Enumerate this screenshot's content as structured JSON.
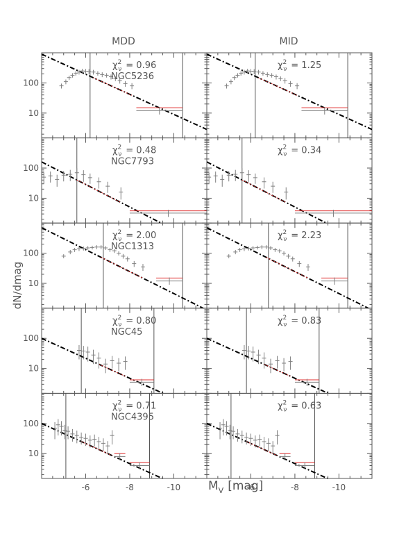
{
  "figure": {
    "column_titles": [
      "MDD",
      "MID"
    ],
    "ylabel": "dN/dmag",
    "xlabel_main": "M",
    "xlabel_sub": "V",
    "xlabel_unit": "[mag]",
    "chi_label_main": "χ",
    "chi_label_sup": "2",
    "chi_label_sub": "ν",
    "x_ticks": [
      -6,
      -8,
      -10
    ],
    "y_ticks": [
      10,
      100
    ],
    "colors": {
      "axes": "#555555",
      "data": "#7f7f7f",
      "fit": "#000000",
      "completeness_bin": "#e03030"
    }
  },
  "chart_data": [
    {
      "type": "scatter",
      "galaxy": "NGC5236",
      "column": "MDD",
      "chi2_nu": "0.96",
      "xlim": [
        -4.0,
        -11.5
      ],
      "ylim": [
        1.5,
        1000
      ],
      "fit": {
        "x0": -4.0,
        "y0": 900,
        "slope": -0.333
      },
      "limit_lines": [
        -6.2,
        -10.4
      ],
      "points": [
        {
          "x": -4.9,
          "y": 80,
          "err": 15
        },
        {
          "x": -5.1,
          "y": 110,
          "err": 20
        },
        {
          "x": -5.25,
          "y": 150,
          "err": 25
        },
        {
          "x": -5.4,
          "y": 180,
          "err": 30
        },
        {
          "x": -5.55,
          "y": 210,
          "err": 35
        },
        {
          "x": -5.7,
          "y": 230,
          "err": 40
        },
        {
          "x": -5.85,
          "y": 250,
          "err": 45
        },
        {
          "x": -6.0,
          "y": 245,
          "err": 45
        },
        {
          "x": -6.15,
          "y": 240,
          "err": 45
        },
        {
          "x": -6.35,
          "y": 230,
          "err": 40
        },
        {
          "x": -6.55,
          "y": 210,
          "err": 35
        },
        {
          "x": -6.75,
          "y": 190,
          "err": 35
        },
        {
          "x": -6.95,
          "y": 180,
          "err": 30
        },
        {
          "x": -7.15,
          "y": 160,
          "err": 30
        },
        {
          "x": -7.35,
          "y": 140,
          "err": 25
        },
        {
          "x": -7.55,
          "y": 120,
          "err": 25
        },
        {
          "x": -7.8,
          "y": 95,
          "err": 20
        },
        {
          "x": -8.1,
          "y": 80,
          "err": 18
        }
      ],
      "wide_bins": [
        {
          "x1": -8.3,
          "x2": -10.4,
          "y_data": 12,
          "y_model": 15
        }
      ]
    },
    {
      "type": "scatter",
      "galaxy": "",
      "column": "MID",
      "chi2_nu": "1.25",
      "xlim": [
        -4.0,
        -11.5
      ],
      "ylim": [
        1.5,
        1000
      ],
      "fit": {
        "x0": -4.0,
        "y0": 900,
        "slope": -0.333
      },
      "limit_lines": [
        -6.2,
        -10.4
      ],
      "points": [
        {
          "x": -4.9,
          "y": 80,
          "err": 15
        },
        {
          "x": -5.1,
          "y": 110,
          "err": 20
        },
        {
          "x": -5.25,
          "y": 150,
          "err": 25
        },
        {
          "x": -5.4,
          "y": 180,
          "err": 30
        },
        {
          "x": -5.55,
          "y": 210,
          "err": 35
        },
        {
          "x": -5.7,
          "y": 230,
          "err": 40
        },
        {
          "x": -5.85,
          "y": 250,
          "err": 45
        },
        {
          "x": -6.0,
          "y": 245,
          "err": 45
        },
        {
          "x": -6.15,
          "y": 240,
          "err": 45
        },
        {
          "x": -6.35,
          "y": 230,
          "err": 40
        },
        {
          "x": -6.55,
          "y": 210,
          "err": 35
        },
        {
          "x": -6.75,
          "y": 190,
          "err": 35
        },
        {
          "x": -6.95,
          "y": 180,
          "err": 30
        },
        {
          "x": -7.15,
          "y": 160,
          "err": 30
        },
        {
          "x": -7.35,
          "y": 140,
          "err": 25
        },
        {
          "x": -7.55,
          "y": 120,
          "err": 25
        },
        {
          "x": -7.8,
          "y": 95,
          "err": 20
        },
        {
          "x": -8.1,
          "y": 80,
          "err": 18
        }
      ],
      "wide_bins": [
        {
          "x1": -8.3,
          "x2": -10.4,
          "y_data": 12,
          "y_model": 15
        }
      ]
    },
    {
      "type": "scatter",
      "galaxy": "NGC7793",
      "column": "MDD",
      "chi2_nu": "0.48",
      "xlim": [
        -4.0,
        -11.5
      ],
      "ylim": [
        1.5,
        1000
      ],
      "fit": {
        "x0": -4.0,
        "y0": 160,
        "slope": -0.374
      },
      "limit_lines": [
        -5.6
      ],
      "points": [
        {
          "x": -4.1,
          "y": 50,
          "err": 20
        },
        {
          "x": -4.4,
          "y": 55,
          "err": 22
        },
        {
          "x": -4.7,
          "y": 42,
          "err": 18
        },
        {
          "x": -5.0,
          "y": 58,
          "err": 22
        },
        {
          "x": -5.3,
          "y": 62,
          "err": 25
        },
        {
          "x": -5.6,
          "y": 70,
          "err": 28
        },
        {
          "x": -5.9,
          "y": 60,
          "err": 25
        },
        {
          "x": -6.2,
          "y": 48,
          "err": 18
        },
        {
          "x": -6.6,
          "y": 35,
          "err": 14
        },
        {
          "x": -7.0,
          "y": 25,
          "err": 10
        },
        {
          "x": -7.6,
          "y": 16,
          "err": 7
        }
      ],
      "wide_bins": [
        {
          "x1": -8.0,
          "x2": -11.5,
          "y_data": 3.2,
          "y_model": 3.8
        }
      ]
    },
    {
      "type": "scatter",
      "galaxy": "",
      "column": "MID",
      "chi2_nu": "0.34",
      "xlim": [
        -4.0,
        -11.5
      ],
      "ylim": [
        1.5,
        1000
      ],
      "fit": {
        "x0": -4.0,
        "y0": 160,
        "slope": -0.374
      },
      "limit_lines": [
        -5.6
      ],
      "points": [
        {
          "x": -4.1,
          "y": 50,
          "err": 20
        },
        {
          "x": -4.4,
          "y": 55,
          "err": 22
        },
        {
          "x": -4.7,
          "y": 42,
          "err": 18
        },
        {
          "x": -5.0,
          "y": 58,
          "err": 22
        },
        {
          "x": -5.3,
          "y": 62,
          "err": 25
        },
        {
          "x": -5.6,
          "y": 70,
          "err": 28
        },
        {
          "x": -5.9,
          "y": 60,
          "err": 25
        },
        {
          "x": -6.2,
          "y": 48,
          "err": 18
        },
        {
          "x": -6.6,
          "y": 35,
          "err": 14
        },
        {
          "x": -7.0,
          "y": 25,
          "err": 10
        },
        {
          "x": -7.6,
          "y": 16,
          "err": 7
        }
      ],
      "wide_bins": [
        {
          "x1": -8.0,
          "x2": -11.5,
          "y_data": 3.2,
          "y_model": 3.8
        }
      ]
    },
    {
      "type": "scatter",
      "galaxy": "NGC1313",
      "column": "MDD",
      "chi2_nu": "2.00",
      "xlim": [
        -4.0,
        -11.5
      ],
      "ylim": [
        1.5,
        1000
      ],
      "fit": {
        "x0": -4.0,
        "y0": 700,
        "slope": -0.364
      },
      "limit_lines": [
        -6.8,
        -10.4
      ],
      "points": [
        {
          "x": -5.0,
          "y": 80,
          "err": 12
        },
        {
          "x": -5.3,
          "y": 110,
          "err": 18
        },
        {
          "x": -5.5,
          "y": 130,
          "err": 20
        },
        {
          "x": -5.7,
          "y": 140,
          "err": 22
        },
        {
          "x": -5.9,
          "y": 145,
          "err": 22
        },
        {
          "x": -6.1,
          "y": 150,
          "err": 22
        },
        {
          "x": -6.3,
          "y": 155,
          "err": 22
        },
        {
          "x": -6.5,
          "y": 160,
          "err": 24
        },
        {
          "x": -6.7,
          "y": 160,
          "err": 24
        },
        {
          "x": -6.9,
          "y": 150,
          "err": 22
        },
        {
          "x": -7.1,
          "y": 130,
          "err": 20
        },
        {
          "x": -7.3,
          "y": 120,
          "err": 18
        },
        {
          "x": -7.5,
          "y": 100,
          "err": 16
        },
        {
          "x": -7.7,
          "y": 80,
          "err": 14
        },
        {
          "x": -7.9,
          "y": 65,
          "err": 12
        },
        {
          "x": -8.2,
          "y": 45,
          "err": 10
        },
        {
          "x": -8.6,
          "y": 35,
          "err": 9
        }
      ],
      "wide_bins": [
        {
          "x1": -9.2,
          "x2": -10.4,
          "y_data": 12,
          "y_model": 15
        }
      ]
    },
    {
      "type": "scatter",
      "galaxy": "",
      "column": "MID",
      "chi2_nu": "2.23",
      "xlim": [
        -4.0,
        -11.5
      ],
      "ylim": [
        1.5,
        1000
      ],
      "fit": {
        "x0": -4.0,
        "y0": 700,
        "slope": -0.364
      },
      "limit_lines": [
        -6.8,
        -10.4
      ],
      "points": [
        {
          "x": -5.0,
          "y": 80,
          "err": 12
        },
        {
          "x": -5.3,
          "y": 110,
          "err": 18
        },
        {
          "x": -5.5,
          "y": 130,
          "err": 20
        },
        {
          "x": -5.7,
          "y": 140,
          "err": 22
        },
        {
          "x": -5.9,
          "y": 145,
          "err": 22
        },
        {
          "x": -6.1,
          "y": 150,
          "err": 22
        },
        {
          "x": -6.3,
          "y": 155,
          "err": 22
        },
        {
          "x": -6.5,
          "y": 160,
          "err": 24
        },
        {
          "x": -6.7,
          "y": 160,
          "err": 24
        },
        {
          "x": -6.9,
          "y": 150,
          "err": 22
        },
        {
          "x": -7.1,
          "y": 130,
          "err": 20
        },
        {
          "x": -7.3,
          "y": 120,
          "err": 18
        },
        {
          "x": -7.5,
          "y": 100,
          "err": 16
        },
        {
          "x": -7.7,
          "y": 80,
          "err": 14
        },
        {
          "x": -7.9,
          "y": 65,
          "err": 12
        },
        {
          "x": -8.2,
          "y": 45,
          "err": 10
        },
        {
          "x": -8.6,
          "y": 35,
          "err": 9
        }
      ],
      "wide_bins": [
        {
          "x1": -9.2,
          "x2": -10.4,
          "y_data": 12,
          "y_model": 15
        }
      ]
    },
    {
      "type": "scatter",
      "galaxy": "NGC45",
      "column": "MDD",
      "chi2_nu": "0.80",
      "xlim": [
        -4.0,
        -11.5
      ],
      "ylim": [
        1.5,
        1000
      ],
      "fit": {
        "x0": -4.0,
        "y0": 100,
        "slope": -0.331
      },
      "limit_lines": [
        -5.8,
        -9.1
      ],
      "points": [
        {
          "x": -5.7,
          "y": 40,
          "err": 20
        },
        {
          "x": -5.9,
          "y": 38,
          "err": 18
        },
        {
          "x": -6.1,
          "y": 35,
          "err": 18
        },
        {
          "x": -6.35,
          "y": 28,
          "err": 14
        },
        {
          "x": -6.6,
          "y": 22,
          "err": 12
        },
        {
          "x": -6.9,
          "y": 14,
          "err": 7
        },
        {
          "x": -7.2,
          "y": 18,
          "err": 8
        },
        {
          "x": -7.5,
          "y": 15,
          "err": 7
        },
        {
          "x": -7.8,
          "y": 17,
          "err": 8
        }
      ],
      "wide_bins": [
        {
          "x1": -8.0,
          "x2": -9.1,
          "y_data": 3.5,
          "y_model": 4.2
        }
      ]
    },
    {
      "type": "scatter",
      "galaxy": "",
      "column": "MID",
      "chi2_nu": "0.83",
      "xlim": [
        -4.0,
        -11.5
      ],
      "ylim": [
        1.5,
        1000
      ],
      "fit": {
        "x0": -4.0,
        "y0": 100,
        "slope": -0.331
      },
      "limit_lines": [
        -5.8,
        -9.1
      ],
      "points": [
        {
          "x": -5.7,
          "y": 40,
          "err": 20
        },
        {
          "x": -5.9,
          "y": 38,
          "err": 18
        },
        {
          "x": -6.1,
          "y": 35,
          "err": 18
        },
        {
          "x": -6.35,
          "y": 28,
          "err": 14
        },
        {
          "x": -6.6,
          "y": 22,
          "err": 12
        },
        {
          "x": -6.9,
          "y": 14,
          "err": 7
        },
        {
          "x": -7.2,
          "y": 18,
          "err": 8
        },
        {
          "x": -7.5,
          "y": 15,
          "err": 7
        },
        {
          "x": -7.8,
          "y": 17,
          "err": 8
        }
      ],
      "wide_bins": [
        {
          "x1": -8.0,
          "x2": -9.1,
          "y_data": 3.5,
          "y_model": 4.2
        }
      ]
    },
    {
      "type": "scatter",
      "galaxy": "NGC4395",
      "column": "MDD",
      "chi2_nu": "0.71",
      "xlim": [
        -4.0,
        -11.5
      ],
      "ylim": [
        1.5,
        1000
      ],
      "fit": {
        "x0": -4.0,
        "y0": 100,
        "slope": -0.333
      },
      "limit_lines": [
        -5.1,
        -8.9
      ],
      "points": [
        {
          "x": -4.6,
          "y": 70,
          "err": 40
        },
        {
          "x": -4.75,
          "y": 90,
          "err": 50
        },
        {
          "x": -4.9,
          "y": 80,
          "err": 40
        },
        {
          "x": -5.05,
          "y": 60,
          "err": 30
        },
        {
          "x": -5.2,
          "y": 55,
          "err": 25
        },
        {
          "x": -5.4,
          "y": 45,
          "err": 20
        },
        {
          "x": -5.6,
          "y": 40,
          "err": 18
        },
        {
          "x": -5.8,
          "y": 35,
          "err": 15
        },
        {
          "x": -6.0,
          "y": 32,
          "err": 14
        },
        {
          "x": -6.2,
          "y": 28,
          "err": 12
        },
        {
          "x": -6.4,
          "y": 30,
          "err": 13
        },
        {
          "x": -6.6,
          "y": 25,
          "err": 11
        },
        {
          "x": -6.8,
          "y": 22,
          "err": 10
        },
        {
          "x": -7.0,
          "y": 18,
          "err": 8
        },
        {
          "x": -7.2,
          "y": 40,
          "err": 20
        }
      ],
      "wide_bins": [
        {
          "x1": -7.3,
          "x2": -7.8,
          "y_data": 8,
          "y_model": 10
        },
        {
          "x1": -8.0,
          "x2": -8.9,
          "y_data": 4,
          "y_model": 5
        }
      ]
    },
    {
      "type": "scatter",
      "galaxy": "",
      "column": "MID",
      "chi2_nu": "0.63",
      "xlim": [
        -4.0,
        -11.5
      ],
      "ylim": [
        1.5,
        1000
      ],
      "fit": {
        "x0": -4.0,
        "y0": 100,
        "slope": -0.333
      },
      "limit_lines": [
        -5.1,
        -8.9
      ],
      "points": [
        {
          "x": -4.6,
          "y": 70,
          "err": 40
        },
        {
          "x": -4.75,
          "y": 90,
          "err": 50
        },
        {
          "x": -4.9,
          "y": 80,
          "err": 40
        },
        {
          "x": -5.05,
          "y": 60,
          "err": 30
        },
        {
          "x": -5.2,
          "y": 55,
          "err": 25
        },
        {
          "x": -5.4,
          "y": 45,
          "err": 20
        },
        {
          "x": -5.6,
          "y": 40,
          "err": 18
        },
        {
          "x": -5.8,
          "y": 35,
          "err": 15
        },
        {
          "x": -6.0,
          "y": 32,
          "err": 14
        },
        {
          "x": -6.2,
          "y": 28,
          "err": 12
        },
        {
          "x": -6.4,
          "y": 30,
          "err": 13
        },
        {
          "x": -6.6,
          "y": 25,
          "err": 11
        },
        {
          "x": -6.8,
          "y": 22,
          "err": 10
        },
        {
          "x": -7.0,
          "y": 18,
          "err": 8
        },
        {
          "x": -7.2,
          "y": 40,
          "err": 20
        }
      ],
      "wide_bins": [
        {
          "x1": -7.3,
          "x2": -7.8,
          "y_data": 8,
          "y_model": 10
        },
        {
          "x1": -8.0,
          "x2": -8.9,
          "y_data": 4,
          "y_model": 5
        }
      ]
    }
  ]
}
